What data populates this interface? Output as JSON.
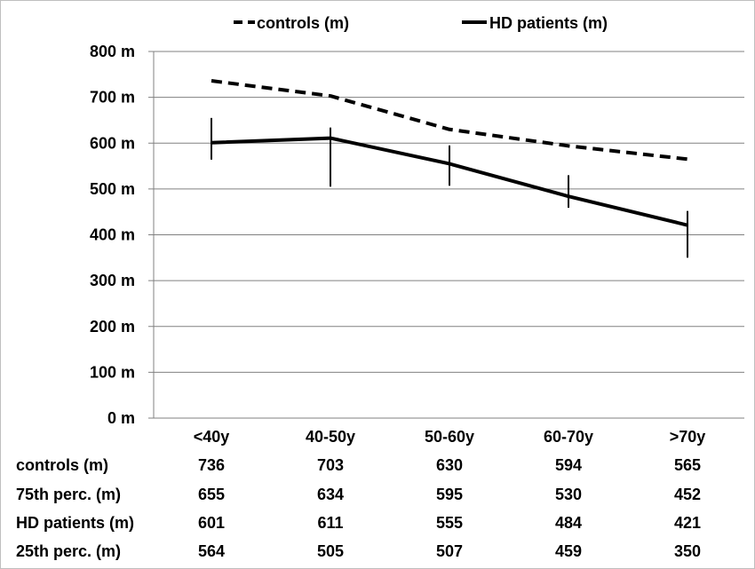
{
  "chart_data": {
    "type": "line",
    "categories": [
      "<40y",
      "40-50y",
      "50-60y",
      "60-70y",
      ">70y"
    ],
    "y_unit": "m",
    "ylim": [
      0,
      800
    ],
    "y_ticks": [
      0,
      100,
      200,
      300,
      400,
      500,
      600,
      700,
      800
    ],
    "y_tick_labels": [
      "0 m",
      "100 m",
      "200 m",
      "300 m",
      "400 m",
      "500 m",
      "600 m",
      "700 m",
      "800 m"
    ],
    "grid": true,
    "legend_position": "top",
    "series": [
      {
        "name": "controls (m)",
        "style": "dashed",
        "values": [
          736,
          703,
          630,
          594,
          565
        ]
      },
      {
        "name": "HD patients (m)",
        "style": "solid",
        "values": [
          601,
          611,
          555,
          484,
          421
        ]
      }
    ],
    "error_bars": {
      "series": "HD patients (m)",
      "upper": [
        655,
        634,
        595,
        530,
        452
      ],
      "lower": [
        564,
        505,
        507,
        459,
        350
      ]
    },
    "table": {
      "rows": [
        {
          "label": "controls (m)",
          "values": [
            "736",
            "703",
            "630",
            "594",
            "565"
          ]
        },
        {
          "label": "75th perc. (m)",
          "values": [
            "655",
            "634",
            "595",
            "530",
            "452"
          ]
        },
        {
          "label": "HD patients (m)",
          "values": [
            "601",
            "611",
            "555",
            "484",
            "421"
          ]
        },
        {
          "label": "25th perc. (m)",
          "values": [
            "564",
            "505",
            "507",
            "459",
            "350"
          ]
        }
      ]
    },
    "colors": {
      "line": "#000000",
      "grid": "#808080",
      "frame": "#bfbfbf"
    }
  }
}
